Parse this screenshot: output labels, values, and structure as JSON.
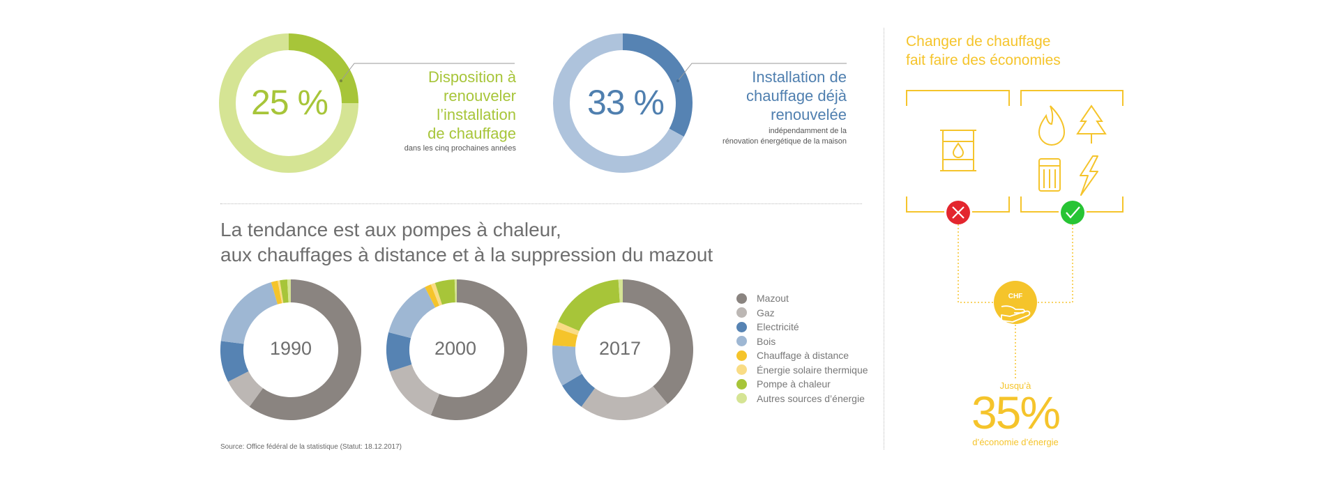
{
  "colors": {
    "green": "#a7c539",
    "green_light": "#d5e494",
    "blue": "#5683b3",
    "blue_light": "#aec3dc",
    "yellow": "#f5c42b",
    "grey_text": "#6e6e6e"
  },
  "headline_donuts": [
    {
      "value_percent": 25,
      "label": "25 %",
      "title_lines": [
        "Disposition à",
        "renouveler",
        "l’installation",
        "de chauffage"
      ],
      "subtitle_lines": [
        "dans les cinq prochaines années"
      ]
    },
    {
      "value_percent": 33,
      "label": "33 %",
      "title_lines": [
        "Installation de",
        "chauffage déjà",
        "renouvelée"
      ],
      "subtitle_lines": [
        "indépendamment de la",
        "rénovation énergétique de la maison"
      ]
    }
  ],
  "trend": {
    "headline_lines": [
      "La tendance est aux pompes à chaleur,",
      "aux chauffages à distance et à la suppression du mazout"
    ]
  },
  "chart_data": [
    {
      "type": "pie",
      "title": "1990",
      "categories": [
        "Mazout",
        "Gaz",
        "Electricité",
        "Bois",
        "Chauffage à distance",
        "Énergie solaire thermique",
        "Pompe à chaleur",
        "Autres sources d’énergie"
      ],
      "values": [
        60,
        7.5,
        9.5,
        18.5,
        1.5,
        0.5,
        1.7,
        0.8
      ]
    },
    {
      "type": "pie",
      "title": "2000",
      "categories": [
        "Mazout",
        "Gaz",
        "Electricité",
        "Bois",
        "Chauffage à distance",
        "Énergie solaire thermique",
        "Pompe à chaleur",
        "Autres sources d’énergie"
      ],
      "values": [
        56,
        14,
        9,
        13.5,
        1.5,
        1,
        4.5,
        0.5
      ]
    },
    {
      "type": "pie",
      "title": "2017",
      "categories": [
        "Mazout",
        "Gaz",
        "Electricité",
        "Bois",
        "Chauffage à distance",
        "Énergie solaire thermique",
        "Pompe à chaleur",
        "Autres sources d’énergie"
      ],
      "values": [
        39,
        21,
        6.5,
        9.5,
        4,
        1.5,
        17.5,
        1
      ]
    }
  ],
  "legend": [
    {
      "label": "Mazout",
      "color": "#8a8480"
    },
    {
      "label": "Gaz",
      "color": "#bcb7b4"
    },
    {
      "label": "Electricité",
      "color": "#5683b3"
    },
    {
      "label": "Bois",
      "color": "#9eb7d3"
    },
    {
      "label": "Chauffage à distance",
      "color": "#f5c42b"
    },
    {
      "label": "Énergie solaire thermique",
      "color": "#f9dc85"
    },
    {
      "label": "Pompe à chaleur",
      "color": "#a7c539"
    },
    {
      "label": "Autres sources d’énergie",
      "color": "#d5e494"
    }
  ],
  "source": "Source: Office fédéral de la statistique (Statut: 18.12.2017)",
  "savings": {
    "title_lines": [
      "Changer de chauffage",
      "fait faire des économies"
    ],
    "chf_label": "CHF",
    "upto": "Jusqu’à",
    "value": "35%",
    "caption": "d’économie d’énergie",
    "bad_icons": [
      "oil-barrel-icon"
    ],
    "good_icons": [
      "flame-icon",
      "tree-icon",
      "heat-pump-icon",
      "lightning-icon"
    ]
  }
}
